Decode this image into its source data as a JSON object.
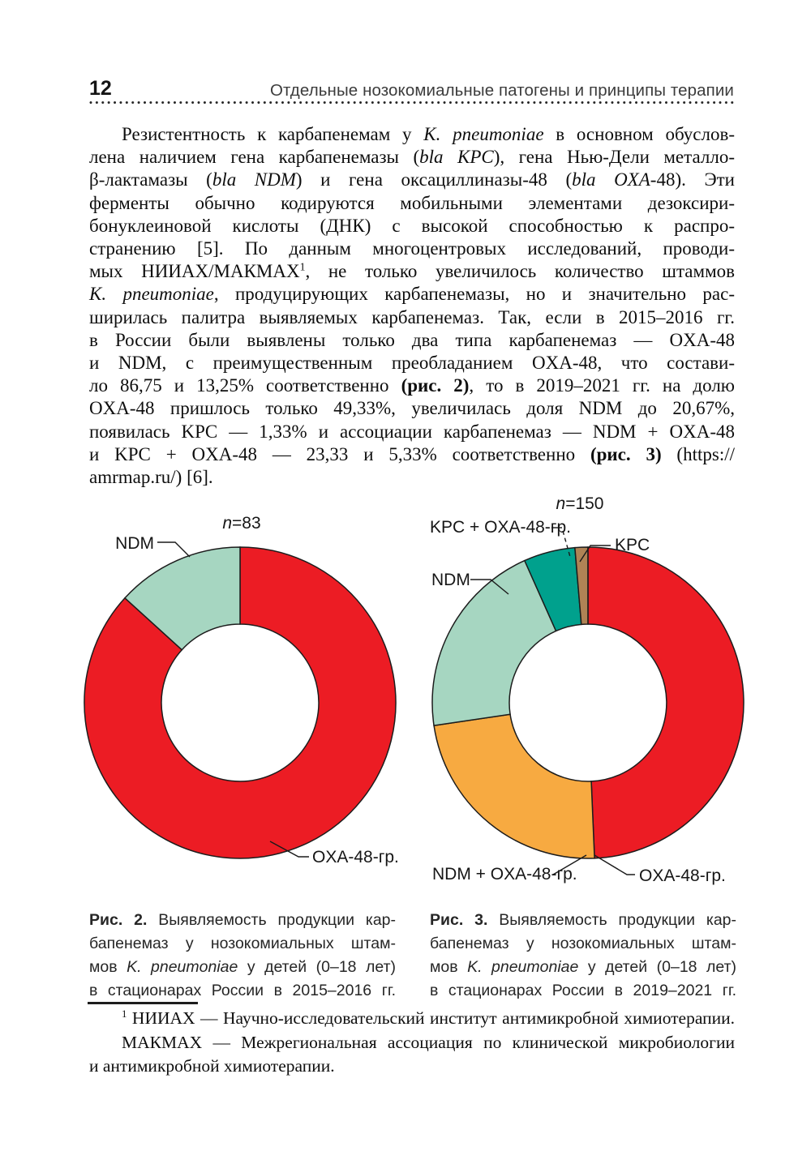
{
  "page": {
    "number": "12",
    "running_header": "Отдельные нозокомиальные патогены и принципы терапии"
  },
  "paragraph": {
    "lines": [
      {
        "indent": true,
        "just": true,
        "seg": [
          {
            "t": "Резистентность к карбапенемам у ",
            "s": "n"
          },
          {
            "t": "K. pneumoniae",
            "s": "i"
          },
          {
            "t": " в основном обуслов-",
            "s": "n"
          }
        ]
      },
      {
        "just": true,
        "seg": [
          {
            "t": "лена наличием гена карбапенемазы (",
            "s": "n"
          },
          {
            "t": "bla KPC",
            "s": "i"
          },
          {
            "t": "), гена Нью-Дели металло-",
            "s": "n"
          }
        ]
      },
      {
        "just": true,
        "seg": [
          {
            "t": "β-лактамазы (",
            "s": "n"
          },
          {
            "t": "bla NDM",
            "s": "i"
          },
          {
            "t": ") и гена оксациллиназы-48 (",
            "s": "n"
          },
          {
            "t": "bla OXA",
            "s": "i"
          },
          {
            "t": "-48). Эти",
            "s": "n"
          }
        ]
      },
      {
        "just": true,
        "seg": [
          {
            "t": "ферменты обычно кодируются мобильными элементами дезоксири-",
            "s": "n"
          }
        ]
      },
      {
        "just": true,
        "seg": [
          {
            "t": "бонуклеиновой кислоты (ДНК) с высокой способностью к распро-",
            "s": "n"
          }
        ]
      },
      {
        "just": true,
        "seg": [
          {
            "t": "странению [5]. По данным многоцентровых исследований, проводи-",
            "s": "n"
          }
        ]
      },
      {
        "just": true,
        "seg": [
          {
            "t": "мых НИИАХ/МАКМАХ",
            "s": "n"
          },
          {
            "t": "1",
            "s": "sup"
          },
          {
            "t": ", не только увеличилось количество штаммов",
            "s": "n"
          }
        ]
      },
      {
        "just": true,
        "seg": [
          {
            "t": "K. pneumoniae",
            "s": "i"
          },
          {
            "t": ", продуцирующих карбапенемазы, но и значительно рас-",
            "s": "n"
          }
        ]
      },
      {
        "just": true,
        "seg": [
          {
            "t": "ширилась палитра выявляемых карбапенемаз. Так, если в 2015–2016 гг.",
            "s": "n"
          }
        ]
      },
      {
        "just": true,
        "seg": [
          {
            "t": "в России были выявлены только два типа карбапенемаз — OXA-48",
            "s": "n"
          }
        ]
      },
      {
        "just": true,
        "seg": [
          {
            "t": "и NDM, с преимущественным преобладанием OXA-48, что состави-",
            "s": "n"
          }
        ]
      },
      {
        "just": true,
        "seg": [
          {
            "t": "ло 86,75 и 13,25% соответственно ",
            "s": "n"
          },
          {
            "t": "(рис. 2)",
            "s": "b"
          },
          {
            "t": ", то в 2019–2021 гг. на долю",
            "s": "n"
          }
        ]
      },
      {
        "just": true,
        "seg": [
          {
            "t": "OXA-48 пришлось только 49,33%, увеличилась доля NDM до 20,67%,",
            "s": "n"
          }
        ]
      },
      {
        "just": true,
        "seg": [
          {
            "t": "появилась KPC — 1,33% и ассоциации карбапенемаз — NDM + OXA-48",
            "s": "n"
          }
        ]
      },
      {
        "just": true,
        "seg": [
          {
            "t": "и KPC + OXA-48 — 23,33 и 5,33% соответственно ",
            "s": "n"
          },
          {
            "t": "(рис. 3)",
            "s": "b"
          },
          {
            "t": " (https://",
            "s": "n"
          }
        ]
      },
      {
        "just": false,
        "seg": [
          {
            "t": "amrmap.ru/) [6].",
            "s": "n"
          }
        ]
      }
    ]
  },
  "chart_data": [
    {
      "type": "pie",
      "subtype": "donut",
      "title": "n=83",
      "sample_size": 83,
      "categories": [
        "OXA-48-гр.",
        "NDM"
      ],
      "values": [
        86.75,
        13.25
      ],
      "colors": [
        "#ec1c24",
        "#a6d6c1"
      ],
      "units": "%",
      "start": "12 o'clock, clockwise",
      "stroke": "#1c1c1c"
    },
    {
      "type": "pie",
      "subtype": "donut",
      "title": "n=150",
      "sample_size": 150,
      "categories": [
        "OXA-48-гр.",
        "NDM + OXA-48-гр.",
        "NDM",
        "KPC + OXA-48-гр.",
        "KPC"
      ],
      "values": [
        49.33,
        23.33,
        20.67,
        5.33,
        1.33
      ],
      "colors": [
        "#ec1c24",
        "#f7aa41",
        "#a6d6c1",
        "#00a18d",
        "#b08355"
      ],
      "units": "%",
      "start": "12 o'clock, clockwise",
      "stroke": "#1c1c1c"
    }
  ],
  "captions": [
    {
      "lines": [
        {
          "just": true,
          "seg": [
            {
              "t": "Рис. 2.",
              "s": "b"
            },
            {
              "t": " Выявляемость продукции кар-",
              "s": "n"
            }
          ]
        },
        {
          "just": true,
          "seg": [
            {
              "t": "бапенемаз у нозокомиальных штам-",
              "s": "n"
            }
          ]
        },
        {
          "just": true,
          "seg": [
            {
              "t": "мов ",
              "s": "n"
            },
            {
              "t": "K. pneumoniae",
              "s": "i"
            },
            {
              "t": " у детей (0–18 лет)",
              "s": "n"
            }
          ]
        },
        {
          "just": true,
          "seg": [
            {
              "t": "в стационарах России в 2015–2016 гг.",
              "s": "n"
            }
          ]
        }
      ]
    },
    {
      "lines": [
        {
          "just": true,
          "seg": [
            {
              "t": "Рис. 3.",
              "s": "b"
            },
            {
              "t": " Выявляемость продукции кар-",
              "s": "n"
            }
          ]
        },
        {
          "just": true,
          "seg": [
            {
              "t": "бапенемаз у нозокомиальных штам-",
              "s": "n"
            }
          ]
        },
        {
          "just": true,
          "seg": [
            {
              "t": "мов ",
              "s": "n"
            },
            {
              "t": "K. pneumoniae",
              "s": "i"
            },
            {
              "t": " у детей (0–18 лет)",
              "s": "n"
            }
          ]
        },
        {
          "just": true,
          "seg": [
            {
              "t": "в стационарах России в 2019–2021 гг.",
              "s": "n"
            }
          ]
        }
      ]
    }
  ],
  "footnote": {
    "lines": [
      {
        "indent": true,
        "just": true,
        "seg": [
          {
            "t": "1",
            "s": "sup"
          },
          {
            "t": " НИИАХ — Научно-исследовательский институт антимикробной химиотерапии.",
            "s": "n"
          }
        ]
      },
      {
        "indent": true,
        "just": true,
        "seg": [
          {
            "t": "МАКМАХ — Межрегиональная ассоциация по клинической микробиологии",
            "s": "n"
          }
        ]
      },
      {
        "indent": false,
        "just": false,
        "seg": [
          {
            "t": "и антимикробной химиотерапии.",
            "s": "n"
          }
        ]
      }
    ]
  }
}
